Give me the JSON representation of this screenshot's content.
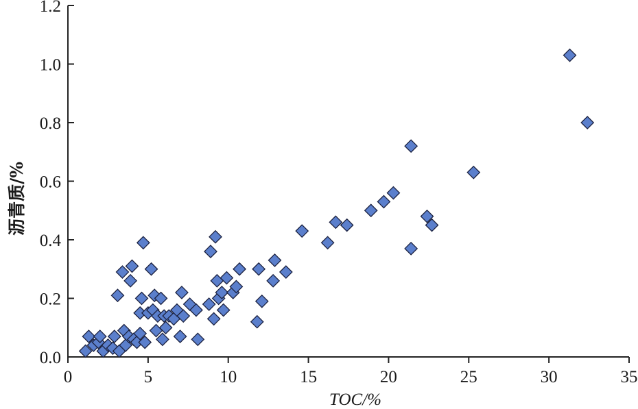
{
  "chart_data": {
    "type": "scatter",
    "xlabel": "TOC/%",
    "ylabel": "沥青质/%",
    "xlim": [
      0,
      35
    ],
    "ylim": [
      0,
      1.2
    ],
    "xticks": [
      0,
      5,
      10,
      15,
      20,
      25,
      30,
      35
    ],
    "yticks": [
      0.0,
      0.2,
      0.4,
      0.6,
      0.8,
      1.0,
      1.2
    ],
    "xtick_labels": [
      "0",
      "5",
      "10",
      "15",
      "20",
      "25",
      "30",
      "35"
    ],
    "ytick_labels": [
      "0.0",
      "0.2",
      "0.4",
      "0.6",
      "0.8",
      "1.0",
      "1.2"
    ],
    "grid": false,
    "marker": "diamond",
    "marker_color": "#5b7fcc",
    "marker_edge_color": "#1c2240",
    "points": [
      {
        "x": 1.1,
        "y": 0.02
      },
      {
        "x": 1.3,
        "y": 0.07
      },
      {
        "x": 1.6,
        "y": 0.04
      },
      {
        "x": 1.9,
        "y": 0.05
      },
      {
        "x": 2.0,
        "y": 0.07
      },
      {
        "x": 2.2,
        "y": 0.02
      },
      {
        "x": 2.5,
        "y": 0.04
      },
      {
        "x": 2.8,
        "y": 0.03
      },
      {
        "x": 2.9,
        "y": 0.07
      },
      {
        "x": 3.1,
        "y": 0.21
      },
      {
        "x": 3.2,
        "y": 0.02
      },
      {
        "x": 3.4,
        "y": 0.29
      },
      {
        "x": 3.5,
        "y": 0.09
      },
      {
        "x": 3.6,
        "y": 0.04
      },
      {
        "x": 3.8,
        "y": 0.07
      },
      {
        "x": 3.9,
        "y": 0.26
      },
      {
        "x": 4.0,
        "y": 0.31
      },
      {
        "x": 4.1,
        "y": 0.06
      },
      {
        "x": 4.3,
        "y": 0.05
      },
      {
        "x": 4.5,
        "y": 0.08
      },
      {
        "x": 4.5,
        "y": 0.15
      },
      {
        "x": 4.6,
        "y": 0.2
      },
      {
        "x": 4.7,
        "y": 0.39
      },
      {
        "x": 4.8,
        "y": 0.05
      },
      {
        "x": 5.0,
        "y": 0.15
      },
      {
        "x": 5.2,
        "y": 0.3
      },
      {
        "x": 5.3,
        "y": 0.16
      },
      {
        "x": 5.4,
        "y": 0.21
      },
      {
        "x": 5.5,
        "y": 0.09
      },
      {
        "x": 5.6,
        "y": 0.14
      },
      {
        "x": 5.8,
        "y": 0.2
      },
      {
        "x": 5.9,
        "y": 0.06
      },
      {
        "x": 6.0,
        "y": 0.14
      },
      {
        "x": 6.1,
        "y": 0.1
      },
      {
        "x": 6.3,
        "y": 0.14
      },
      {
        "x": 6.6,
        "y": 0.13
      },
      {
        "x": 6.8,
        "y": 0.16
      },
      {
        "x": 7.0,
        "y": 0.07
      },
      {
        "x": 7.1,
        "y": 0.22
      },
      {
        "x": 7.2,
        "y": 0.14
      },
      {
        "x": 7.6,
        "y": 0.18
      },
      {
        "x": 8.0,
        "y": 0.16
      },
      {
        "x": 8.1,
        "y": 0.06
      },
      {
        "x": 8.8,
        "y": 0.18
      },
      {
        "x": 8.9,
        "y": 0.36
      },
      {
        "x": 9.1,
        "y": 0.13
      },
      {
        "x": 9.2,
        "y": 0.41
      },
      {
        "x": 9.3,
        "y": 0.26
      },
      {
        "x": 9.4,
        "y": 0.2
      },
      {
        "x": 9.6,
        "y": 0.22
      },
      {
        "x": 9.7,
        "y": 0.16
      },
      {
        "x": 9.9,
        "y": 0.27
      },
      {
        "x": 10.3,
        "y": 0.22
      },
      {
        "x": 10.5,
        "y": 0.24
      },
      {
        "x": 10.7,
        "y": 0.3
      },
      {
        "x": 11.8,
        "y": 0.12
      },
      {
        "x": 11.9,
        "y": 0.3
      },
      {
        "x": 12.1,
        "y": 0.19
      },
      {
        "x": 12.8,
        "y": 0.26
      },
      {
        "x": 12.9,
        "y": 0.33
      },
      {
        "x": 13.6,
        "y": 0.29
      },
      {
        "x": 14.6,
        "y": 0.43
      },
      {
        "x": 16.2,
        "y": 0.39
      },
      {
        "x": 16.7,
        "y": 0.46
      },
      {
        "x": 17.4,
        "y": 0.45
      },
      {
        "x": 18.9,
        "y": 0.5
      },
      {
        "x": 19.7,
        "y": 0.53
      },
      {
        "x": 20.3,
        "y": 0.56
      },
      {
        "x": 21.4,
        "y": 0.72
      },
      {
        "x": 21.4,
        "y": 0.37
      },
      {
        "x": 22.4,
        "y": 0.48
      },
      {
        "x": 22.7,
        "y": 0.45
      },
      {
        "x": 25.3,
        "y": 0.63
      },
      {
        "x": 31.3,
        "y": 1.03
      },
      {
        "x": 32.4,
        "y": 0.8
      }
    ]
  }
}
